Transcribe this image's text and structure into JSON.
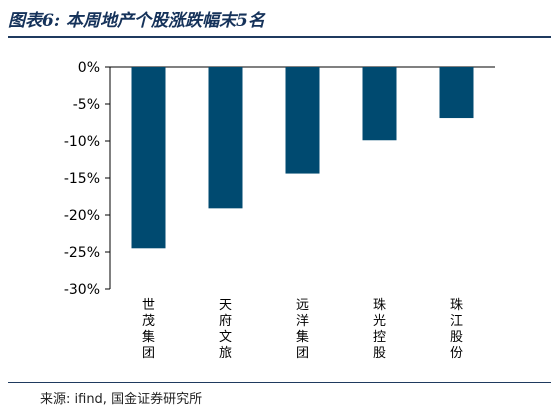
{
  "header": {
    "title": "图表6: 本周地产个股涨跌幅末5名"
  },
  "footer": {
    "source": "来源: ifind, 国金证券研究所"
  },
  "colors": {
    "bar": "#004A70",
    "axis": "#000000",
    "title": "#15325A"
  },
  "chart_data": {
    "type": "bar",
    "categories": [
      "世茂集团",
      "天府文旅",
      "远洋集团",
      "珠光控股",
      "珠江股份"
    ],
    "values": [
      -24.5,
      -19.1,
      -14.4,
      -9.9,
      -6.9
    ],
    "ylim": [
      -30,
      0
    ],
    "yticks": [
      "0%",
      "-5%",
      "-10%",
      "-15%",
      "-20%",
      "-25%",
      "-30%"
    ],
    "title": "",
    "xlabel": "",
    "ylabel": "",
    "grid": false
  }
}
